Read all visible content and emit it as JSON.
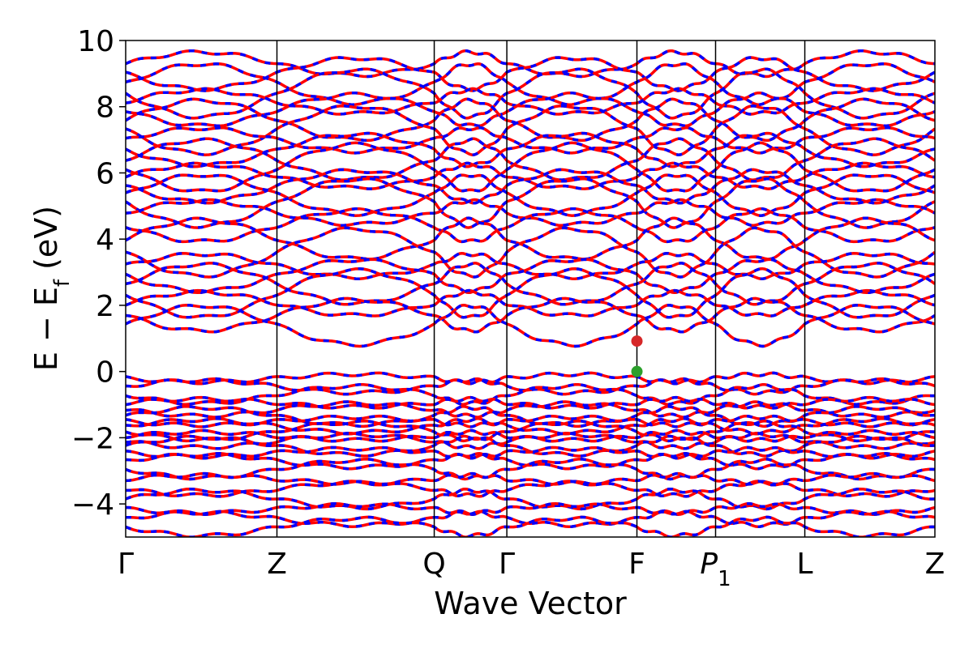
{
  "chart_data": {
    "type": "line",
    "title": "",
    "xlabel": "Wave Vector",
    "ylabel": "E − Ef (eV)",
    "ylabel_parts": {
      "main": "E − E",
      "sub": "f",
      "unit": " (eV)"
    },
    "ylim": [
      -5,
      10
    ],
    "yticks": [
      -4,
      -2,
      0,
      2,
      4,
      6,
      8,
      10
    ],
    "ytick_labels": [
      "−4",
      "−2",
      "0",
      "2",
      "4",
      "6",
      "8",
      "10"
    ],
    "xlim": [
      0,
      5.35
    ],
    "kpoints": [
      {
        "label": "Γ",
        "x": 0.0
      },
      {
        "label": "Z",
        "x": 1.0
      },
      {
        "label": "Q",
        "x": 2.04
      },
      {
        "label": "Γ",
        "x": 2.52
      },
      {
        "label": "F",
        "x": 3.38
      },
      {
        "label": "P",
        "sub": "1",
        "x": 3.9,
        "italic": true
      },
      {
        "label": "L",
        "x": 4.49
      },
      {
        "label": "Z",
        "x": 5.35
      }
    ],
    "series_colors": {
      "overlay_a": "#ff0000",
      "overlay_b": "#0000ff"
    },
    "markers": [
      {
        "name": "CBM",
        "x": 3.38,
        "y": 0.92,
        "color": "#d62728"
      },
      {
        "name": "VBM",
        "x": 3.38,
        "y": 0.0,
        "color": "#2ca02c"
      }
    ],
    "band_baselines": [
      9.3,
      9.0,
      8.7,
      8.4,
      8.15,
      7.9,
      7.6,
      7.3,
      7.0,
      6.7,
      6.4,
      6.15,
      5.9,
      5.6,
      5.35,
      5.1,
      4.8,
      4.4,
      4.0,
      3.6,
      3.2,
      2.9,
      2.65,
      2.35,
      2.05,
      1.7,
      1.4,
      -0.2,
      -0.45,
      -0.7,
      -0.95,
      -1.15,
      -1.35,
      -1.5,
      -1.65,
      -1.8,
      -1.95,
      -2.1,
      -2.25,
      -2.45,
      -2.7,
      -2.95,
      -3.25,
      -3.55,
      -3.85,
      -4.15,
      -4.45,
      -4.7
    ]
  }
}
